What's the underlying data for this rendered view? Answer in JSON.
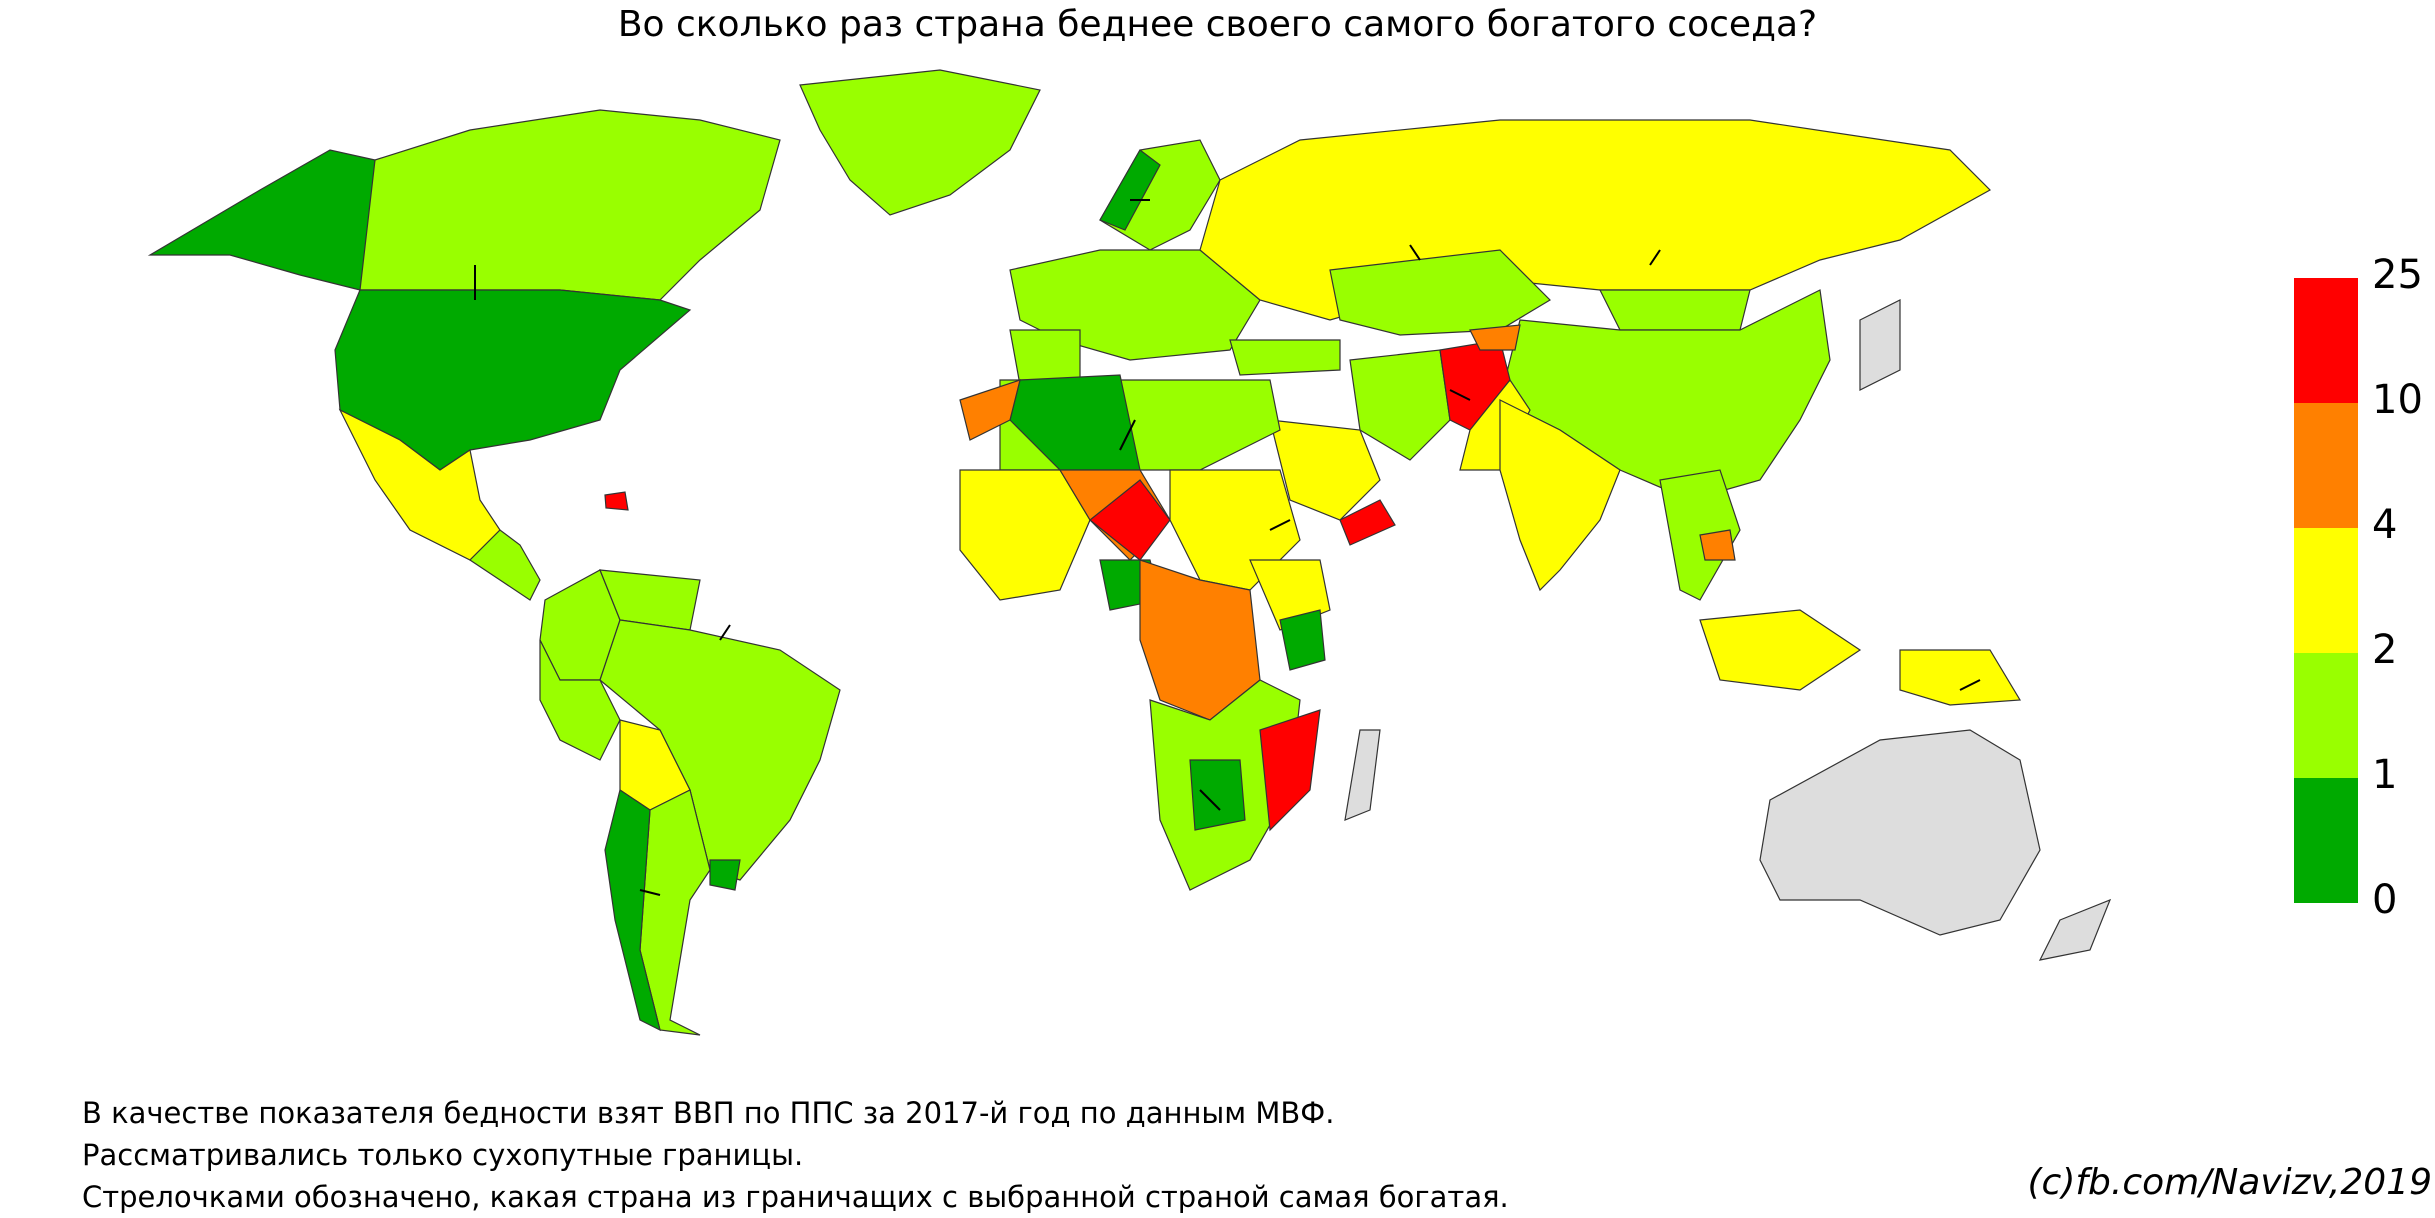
{
  "title": "Во сколько раз страна беднее своего самого богатого соседа?",
  "notes": [
    "В качестве показателя бедности взят ВВП по ППС за 2017-й год по данным МВФ.",
    "Рассматривались только сухопутные границы.",
    "Стрелочками обозначено, какая страна из граничащих с выбранной страной самая богатая."
  ],
  "credit": "(c)fb.com/Navizv,2019",
  "legend": {
    "labels": [
      "25",
      "10",
      "4",
      "2",
      "1",
      "0"
    ],
    "bins": [
      {
        "from": 10,
        "to": 25,
        "color": "#ff0000"
      },
      {
        "from": 4,
        "to": 10,
        "color": "#ff8000"
      },
      {
        "from": 2,
        "to": 4,
        "color": "#ffff00"
      },
      {
        "from": 1,
        "to": 2,
        "color": "#99ff00"
      },
      {
        "from": 0,
        "to": 1,
        "color": "#00aa00"
      }
    ],
    "no_data_color": "#dddddd"
  }
}
